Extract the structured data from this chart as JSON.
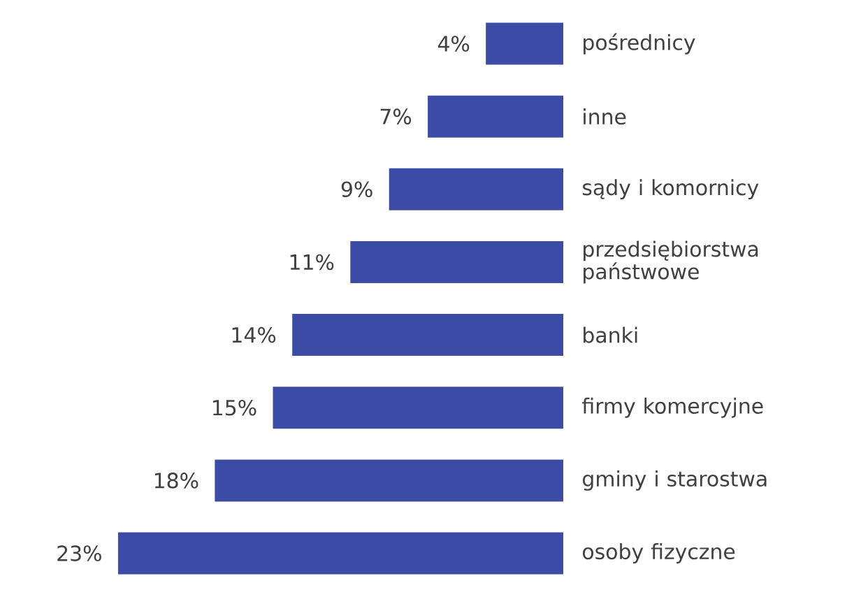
{
  "chart_data": {
    "type": "bar",
    "orientation": "horizontal",
    "categories": [
      "pośrednicy",
      "inne",
      "sądy i komornicy",
      "przedsiębiorstwa państwowe",
      "banki",
      "firmy komercyjne",
      "gminy i starostwa",
      "osoby fizyczne"
    ],
    "values": [
      4,
      7,
      9,
      11,
      14,
      15,
      18,
      23
    ],
    "value_labels": [
      "4%",
      "7%",
      "9%",
      "11%",
      "14%",
      "15%",
      "18%",
      "23%"
    ],
    "color": "#3b4ba6"
  }
}
